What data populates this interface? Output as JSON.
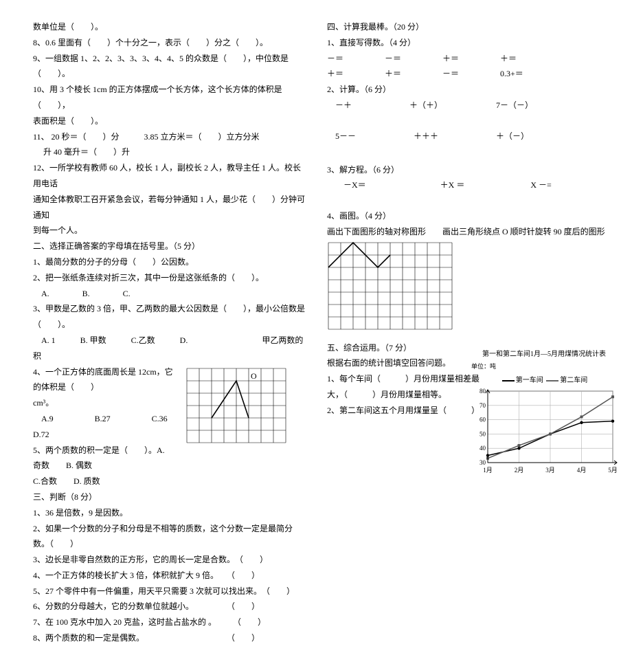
{
  "left": {
    "l1": "数单位是（　　）。",
    "l2": "8、0.6 里面有（　　）个十分之一，表示（　　）分之（　　）。",
    "l3": "9、一组数据 1、2、2、3、3、3、4、4、5 的众数是（　　），中位数是（　　）。",
    "l4": "10、用 3 个棱长 1cm 的正方体摆成一个长方体，这个长方体的体积是（　　），",
    "l5": "表面积是（　　）。",
    "l6": "11、 20 秒＝（　　）分　　　3.85 立方米＝（　　）立方分米",
    "l7": "　 升 40 毫升＝（　　）升",
    "l8": "12、一所学校有教师 60 人，校长 1 人，副校长 2 人，教导主任 1 人。校长用电话",
    "l9": "通知全体教职工召开紧急会议，若每分钟通知 1 人，最少花（　　）分钟可通知",
    "l10": "到每一个人。",
    "sec2": "二、选择正确答案的字母填在括号里。（5 分）",
    "q2_1": "1、最简分数的分子的分母（　　）公因数。",
    "q2_2": "2、把一张纸条连续对折三次，其中一份是这张纸条的（　　）。",
    "q2_2o": "　A.　　　　B.　　　　C.",
    "q2_3a": "3、甲数是乙数的 3 倍，甲、乙两数的最大公因数是（　　），最小公倍数是",
    "q2_3b": "（　　）。",
    "q2_3o": "　A. 1　　　B. 甲数　　　C.乙数　　　D.　　　　　　　　　甲乙两数的积",
    "q2_4a": "4、一个正方体的底面周长是 12cm，它　　　　　　　　　　　的体积是（　　）",
    "q2_4b": "cm³。",
    "q2_4o": "　A.9　　　　　B.27　　　　　C.36　　　　　　　　　　　D.72",
    "q2_5a": "5、两个质数的积一定是（　　）。A.　　　　　　　　　　　奇数　　B. 偶数",
    "q2_5b": "C.合数　　D. 质数",
    "sec3": "三、判断（8 分）",
    "q3_1": "1、36 是倍数，9 是因数。",
    "q3_2": "2、如果一个分数的分子和分母是不相等的质数，这个分数一定是最简分数。（　　）",
    "q3_3": "3、边长是非零自然数的正方形，它的周长一定是合数。　（　　）",
    "q3_4": "4、一个正方体的棱长扩大 3 倍，体积就扩大 9 倍。　　（　　）",
    "q3_5": "5、27 个零件中有一件偏重，用天平只需要 3 次就可以找出来。　（　　）",
    "q3_6": "6、分数的分母越大，它的分数单位就越小。　　　　　（　　）",
    "q3_7": "7、在 100 克水中加入 20 克盐，这时盐占盐水的 。　　　（　　）",
    "q3_8": "8、两个质数的和一定是偶数。　　　　　　　　　　　（　　）",
    "grid1": {
      "cols": 8,
      "rows": 6,
      "cell": 18,
      "poly_points": [
        [
          2,
          4
        ],
        [
          4,
          1
        ],
        [
          5,
          4
        ]
      ],
      "label": "O",
      "label_at": [
        5,
        1
      ]
    }
  },
  "right": {
    "sec4": "四、计算我最棒。（20 分）",
    "r4_1": "1、直接写得数。（4 分）",
    "r4_1a": "－＝　　　　　－＝　　　　　＋＝　　　　　＋＝",
    "r4_1b": "＋＝　　　　　＋＝　　　　　－＝　　　　　0.3+＝",
    "r4_2": "2、计算。（6 分）",
    "r4_2a": "　－＋　　　　　　　＋（＋）　　　　　　　7－（－）",
    "r4_2b": "　5－－　　　　　　　＋＋＋　　　　　　　＋（－）",
    "r4_3": "3、解方程。（6 分）",
    "r4_3a": "　　－X＝　　　　　　　　　＋X ＝　　　　　　　　X －=",
    "r4_4": "4、画图。（4 分）",
    "r4_4a": "画出下面图形的轴对称图形　　画出三角形绕点 O 顺时针旋转 90 度后的图形",
    "sec5": "五、综合运用。（7 分）",
    "r5_0": "根据右面的统计图填空回答问题。",
    "r5_1": "1、每个车间（　　　）月份用煤量相差最",
    "r5_1b": "大，（　　　）月份用煤量相等。",
    "r5_2": "2、第二车间这五个月用煤量呈（　　　）",
    "grid2": {
      "cols": 10,
      "rows": 7,
      "cell": 18,
      "poly_points": [
        [
          0,
          2
        ],
        [
          2,
          0
        ],
        [
          4,
          2
        ],
        [
          5,
          1
        ]
      ]
    },
    "chart": {
      "title": "第一和第二车间1月—5月用煤情况统计表",
      "ylabel": "单位：吨",
      "legend": [
        "第一车间",
        "第二车间"
      ],
      "xticks": [
        "1月",
        "2月",
        "3月",
        "4月",
        "5月"
      ],
      "yticks": [
        30,
        40,
        50,
        60,
        70,
        80
      ],
      "ylim": [
        30,
        80
      ],
      "series1": [
        35,
        40,
        50,
        58,
        59
      ],
      "series2": [
        33,
        42,
        50,
        62,
        76
      ],
      "line_color1": "#000000",
      "line_color2": "#555555",
      "grid_color": "#b0b0b0",
      "background": "#ffffff"
    }
  }
}
